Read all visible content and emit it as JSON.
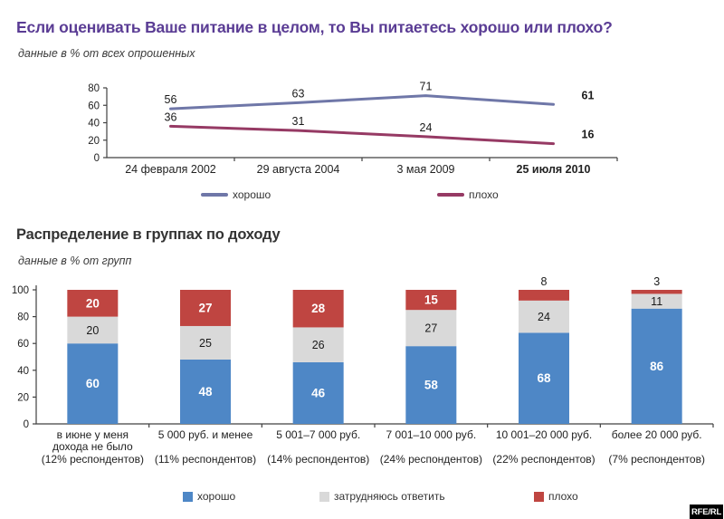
{
  "header": {
    "title": "Если оценивать Ваше питание в целом, то Вы питаетесь хорошо или плохо?",
    "subtitle": "данные в % от всех опрошенных"
  },
  "section2": {
    "title": "Распределение в группах по доходу",
    "subtitle": "данные в % от групп"
  },
  "colors": {
    "title_accent": "#5a3c94",
    "good_line": "#6f77a8",
    "bad_line": "#963a64",
    "good_bar": "#4e87c6",
    "neutral_bar": "#d9d9d9",
    "bad_bar": "#bf4541",
    "axis": "#404040"
  },
  "chart_data": [
    {
      "type": "line",
      "categories": [
        "24 февраля 2002",
        "29 августа 2004",
        "3 мая 2009",
        "25 июля 2010"
      ],
      "series": [
        {
          "name": "хорошо",
          "values": [
            56,
            63,
            71,
            61
          ],
          "color": "#6f77a8"
        },
        {
          "name": "плохо",
          "values": [
            36,
            31,
            24,
            16
          ],
          "color": "#963a64"
        }
      ],
      "ylim": [
        0,
        80
      ],
      "yticks": [
        0,
        20,
        40,
        60,
        80
      ],
      "emphasize_last": true,
      "legend_position": "bottom",
      "grid": false
    },
    {
      "type": "bar",
      "stacked": true,
      "categories": [
        {
          "name": "в июне у меня дохода не было",
          "share": "(12% респондентов)"
        },
        {
          "name": "5 000 руб. и менее",
          "share": "(11% респондентов)"
        },
        {
          "name": "5 001–7 000 руб.",
          "share": "(14% респондентов)"
        },
        {
          "name": "7 001–10 000 руб.",
          "share": "(24% респондентов)"
        },
        {
          "name": "10 001–20 000 руб.",
          "share": "(22% респондентов)"
        },
        {
          "name": "более 20 000 руб.",
          "share": "(7% респондентов)"
        }
      ],
      "series": [
        {
          "name": "хорошо",
          "values": [
            60,
            48,
            46,
            58,
            68,
            86
          ],
          "color": "#4e87c6",
          "label_color": "#ffffff",
          "label_bold": true
        },
        {
          "name": "затрудняюсь ответить",
          "values": [
            20,
            25,
            26,
            27,
            24,
            11
          ],
          "color": "#d9d9d9",
          "label_color": "#1a1a1a",
          "label_bold": false
        },
        {
          "name": "плохо",
          "values": [
            20,
            27,
            28,
            15,
            8,
            3
          ],
          "color": "#bf4541",
          "label_color": "#ffffff",
          "label_bold": true
        }
      ],
      "ylim": [
        0,
        100
      ],
      "yticks": [
        0,
        20,
        40,
        60,
        80,
        100
      ],
      "legend_position": "bottom",
      "grid": false
    }
  ],
  "legends": {
    "line": [
      {
        "label": "хорошо",
        "color": "#6f77a8"
      },
      {
        "label": "плохо",
        "color": "#963a64"
      }
    ],
    "bars": [
      {
        "label": "хорошо",
        "color": "#4e87c6"
      },
      {
        "label": "затрудняюсь ответить",
        "color": "#d9d9d9"
      },
      {
        "label": "плохо",
        "color": "#bf4541"
      }
    ]
  },
  "logo": {
    "text": "RFE/RL"
  }
}
